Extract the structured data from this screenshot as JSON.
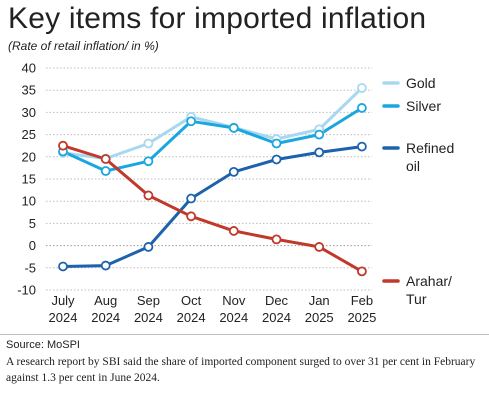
{
  "header": {
    "title": "Key items for imported inflation",
    "subtitle": "(Rate of retail inflation/ in %)"
  },
  "footer": {
    "source": "Source: MoSPI",
    "note": "A research report by SBI said the share of imported component surged to over 31 per cent in February against 1.3 per cent in June 2024."
  },
  "chart_data": {
    "type": "line",
    "title": "Key items for imported inflation",
    "subtitle": "(Rate of retail inflation/ in %)",
    "xlabel": "",
    "ylabel": "",
    "ylim": [
      -10,
      40
    ],
    "yticks": [
      40,
      35,
      30,
      25,
      20,
      15,
      10,
      5,
      0,
      -5,
      -10
    ],
    "grid": true,
    "legend_position": "right",
    "categories": [
      [
        "July",
        "2024"
      ],
      [
        "Aug",
        "2024"
      ],
      [
        "Sep",
        "2024"
      ],
      [
        "Oct",
        "2024"
      ],
      [
        "Nov",
        "2024"
      ],
      [
        "Dec",
        "2024"
      ],
      [
        "Jan",
        "2025"
      ],
      [
        "Feb",
        "2025"
      ]
    ],
    "series": [
      {
        "name": "Gold",
        "label_lines": [
          "Gold"
        ],
        "color": "#a8d8ef",
        "values": [
          20.9,
          19.6,
          23.0,
          29.0,
          26.6,
          24.0,
          26.2,
          35.5
        ]
      },
      {
        "name": "Silver",
        "label_lines": [
          "Silver"
        ],
        "color": "#1aa6df",
        "values": [
          21.2,
          16.8,
          19.0,
          28.0,
          26.5,
          23.0,
          25.0,
          31.0
        ]
      },
      {
        "name": "Refined oil",
        "label_lines": [
          "Refined",
          "oil"
        ],
        "color": "#1d62ac",
        "values": [
          -4.7,
          -4.5,
          -0.3,
          10.6,
          16.6,
          19.4,
          21.0,
          22.3
        ]
      },
      {
        "name": "Arahar/ Tur",
        "label_lines": [
          "Arahar/",
          "Tur"
        ],
        "color": "#c0392b",
        "values": [
          22.5,
          19.5,
          11.3,
          6.6,
          3.3,
          1.4,
          -0.3,
          -5.8
        ]
      }
    ]
  }
}
